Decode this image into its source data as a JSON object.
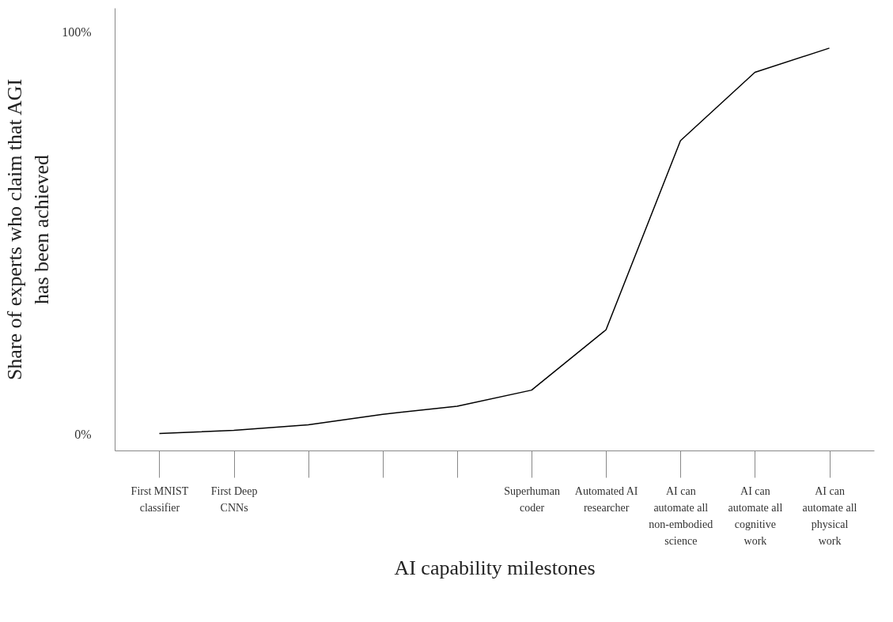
{
  "chart_data": {
    "type": "line",
    "xlabel": "AI capability milestones",
    "ylabel": "Share of experts who claim that AGI has been achieved",
    "categories": [
      "First MNIST classifier",
      "First Deep CNNs",
      null,
      null,
      null,
      "Superhuman coder",
      "Automated AI researcher",
      "AI can automate all non-embodied science",
      "AI can automate all cognitive work",
      "AI can automate all physical work"
    ],
    "series": [
      {
        "color": "#000000",
        "values": [
          0.2,
          1,
          2.4,
          5,
          7,
          11,
          26,
          73,
          90,
          96
        ]
      }
    ],
    "ylim": [
      -4,
      106
    ],
    "yticks": [
      {
        "value": 0,
        "label": "0%"
      },
      {
        "value": 100,
        "label": "100%"
      }
    ],
    "grid": false,
    "marker": "none",
    "line_style": "solid"
  }
}
